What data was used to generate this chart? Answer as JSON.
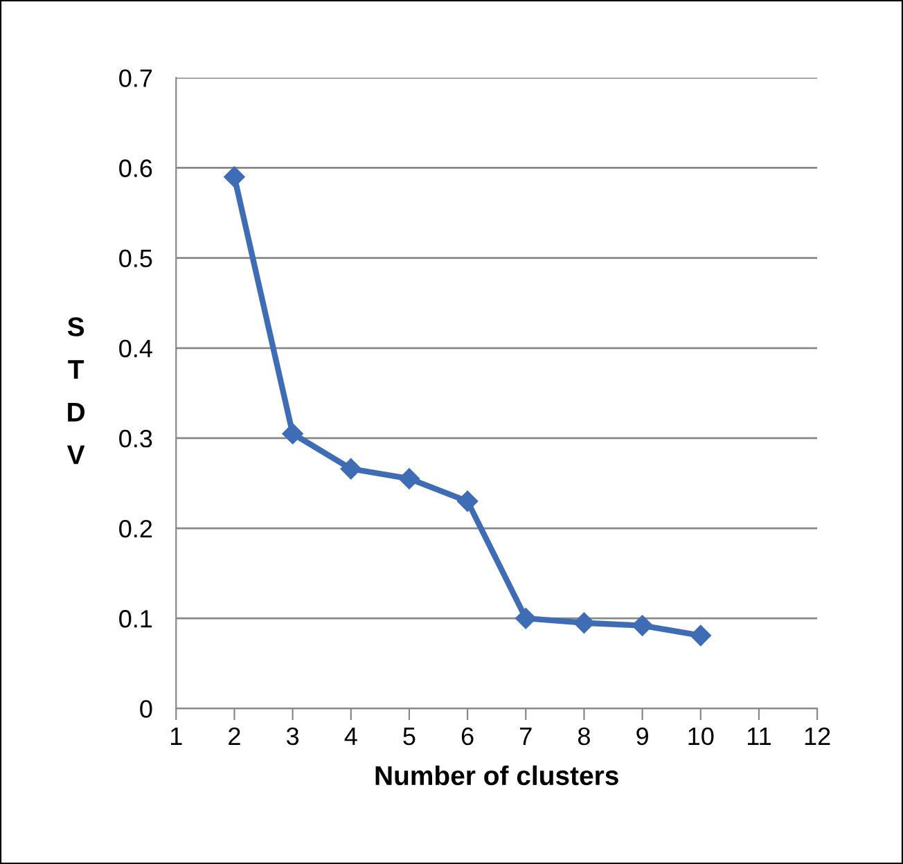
{
  "chart_data": {
    "type": "line",
    "xlabel": "Number of clusters",
    "ylabel": "STDV",
    "x": [
      2,
      3,
      4,
      5,
      6,
      7,
      8,
      9,
      10
    ],
    "series": [
      {
        "color": "#3e6db5",
        "values": [
          0.59,
          0.305,
          0.266,
          0.255,
          0.23,
          0.1,
          0.095,
          0.092,
          0.081
        ]
      }
    ],
    "xlim": [
      1,
      12
    ],
    "xticks": [
      1,
      2,
      3,
      4,
      5,
      6,
      7,
      8,
      9,
      10,
      11,
      12
    ],
    "ylim": [
      0,
      0.7
    ],
    "yticks": [
      0,
      0.1,
      0.2,
      0.3,
      0.4,
      0.5,
      0.6,
      0.7
    ],
    "grid": "y",
    "marker": "diamond",
    "line_style": "solid"
  }
}
